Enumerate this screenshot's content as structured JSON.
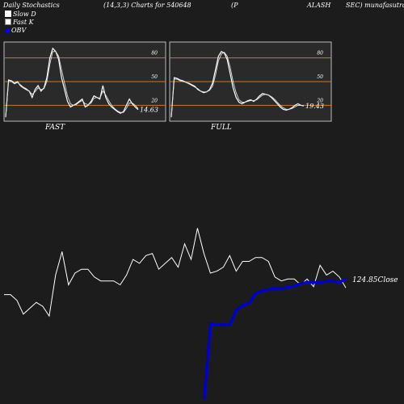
{
  "header": {
    "left": "Daily Stochastics",
    "params": "(14,3,3) Charts for 540648",
    "p": "(P",
    "alash": "ALASH",
    "right": "SEC) munafasutra.com"
  },
  "legend": [
    {
      "label": "Slow  D",
      "icon": "white-square",
      "color": "#ffffff"
    },
    {
      "label": "Fast K",
      "icon": "white-square",
      "color": "#ffffff"
    },
    {
      "label": "OBV",
      "icon": "blue-dot",
      "color": "#0000ff"
    }
  ],
  "colors": {
    "background": "#1c1c1c",
    "panel": "#2a2a2a",
    "level_line": "#c8781e",
    "obv": "#0000cc",
    "price": "#ffffff"
  },
  "chart_data": [
    {
      "type": "line",
      "title": "FAST",
      "ylim": [
        0,
        100
      ],
      "levels": [
        80,
        50,
        20
      ],
      "tick_labels": [
        "80",
        "50",
        "20"
      ],
      "last_value_label": "14.63",
      "series": [
        {
          "values": [
            5,
            52,
            51,
            48,
            50,
            45,
            42,
            40,
            38,
            30,
            40,
            45,
            38,
            42,
            55,
            80,
            92,
            88,
            78,
            55,
            40,
            25,
            18,
            20,
            22,
            25,
            28,
            18,
            20,
            25,
            32,
            30,
            28,
            45,
            30,
            22,
            18,
            15,
            12,
            10,
            12,
            20,
            28,
            22,
            18,
            14.63
          ]
        },
        {
          "values": [
            5,
            50,
            50,
            47,
            49,
            46,
            43,
            41,
            38,
            34,
            37,
            42,
            40,
            41,
            50,
            72,
            88,
            88,
            82,
            65,
            48,
            32,
            22,
            20,
            21,
            24,
            26,
            22,
            21,
            23,
            29,
            30,
            29,
            38,
            33,
            26,
            20,
            16,
            13,
            11,
            11,
            16,
            23,
            23,
            20,
            16
          ]
        }
      ]
    },
    {
      "type": "line",
      "title": "FULL",
      "ylim": [
        0,
        100
      ],
      "levels": [
        80,
        50,
        20
      ],
      "tick_labels": [
        "80",
        "50",
        "20"
      ],
      "last_value_label": "19.43",
      "series": [
        {
          "values": [
            5,
            55,
            54,
            52,
            51,
            49,
            48,
            46,
            44,
            40,
            38,
            36,
            37,
            40,
            48,
            65,
            82,
            88,
            86,
            78,
            60,
            42,
            30,
            24,
            22,
            24,
            26,
            27,
            25,
            28,
            32,
            35,
            34,
            33,
            30,
            26,
            22,
            18,
            15,
            14,
            15,
            17,
            20,
            22,
            20,
            19.43
          ]
        },
        {
          "values": [
            5,
            53,
            53,
            51,
            50,
            49,
            47,
            45,
            43,
            41,
            38,
            37,
            37,
            39,
            44,
            58,
            76,
            85,
            87,
            82,
            68,
            50,
            36,
            27,
            24,
            24,
            25,
            26,
            26,
            27,
            30,
            33,
            34,
            33,
            31,
            28,
            24,
            20,
            17,
            15,
            15,
            16,
            18,
            20,
            20,
            20
          ]
        }
      ]
    },
    {
      "type": "line",
      "close_label": "124.85Close",
      "series": [
        {
          "name": "Close",
          "values": [
            124.5,
            124.5,
            124.2,
            123.5,
            123.8,
            124.1,
            123.9,
            123.4,
            125.5,
            126.7,
            125,
            125.6,
            125.8,
            125.8,
            125.4,
            125.2,
            125.2,
            125.2,
            125,
            125.5,
            126.3,
            126.1,
            126.5,
            126.6,
            125.8,
            126.1,
            126.4,
            125.9,
            127.1,
            126.3,
            127.9,
            126.6,
            125.6,
            125.7,
            125.9,
            126.5,
            125.7,
            126.2,
            126.2,
            126.4,
            126.4,
            126.2,
            125.4,
            125.2,
            125.3,
            125.3,
            125.0,
            125.3,
            124.9,
            126.0,
            125.5,
            125.7,
            125.4,
            124.85
          ]
        },
        {
          "name": "OBV",
          "values": [
            0,
            0,
            0,
            0,
            0,
            0,
            0,
            0,
            0,
            0,
            0,
            0,
            0,
            0,
            0,
            0,
            0,
            0,
            0,
            0,
            0,
            0,
            0,
            0,
            0,
            0,
            0,
            0,
            0,
            0,
            0,
            0,
            63,
            62,
            62,
            62,
            74,
            78,
            80,
            88,
            90,
            91,
            92,
            92,
            93,
            94,
            96,
            97,
            97,
            97,
            98,
            98,
            97,
            100
          ]
        }
      ]
    }
  ]
}
